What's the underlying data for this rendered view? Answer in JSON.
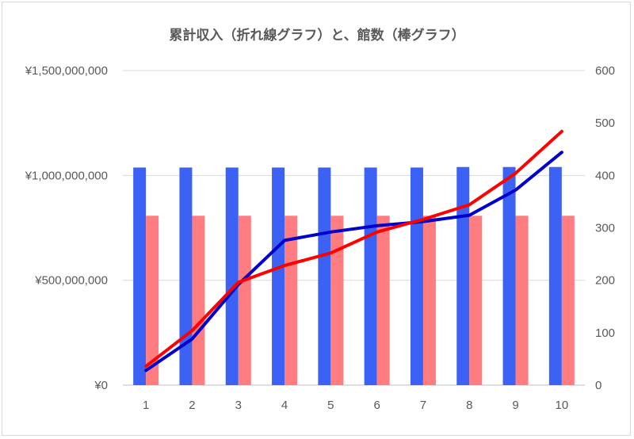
{
  "chart_data": {
    "type": "bar",
    "title": "累計収入（折れ線グラフ）と、館数（棒グラフ）",
    "categories": [
      "1",
      "2",
      "3",
      "4",
      "5",
      "6",
      "7",
      "8",
      "9",
      "10"
    ],
    "y_left": {
      "ticks": [
        "¥0",
        "¥500,000,000",
        "¥1,000,000,000",
        "¥1,500,000,000"
      ],
      "range": [
        0,
        1500000000
      ]
    },
    "y_right": {
      "ticks": [
        "0",
        "100",
        "200",
        "300",
        "400",
        "500",
        "600"
      ],
      "range": [
        0,
        600
      ]
    },
    "bar_series": [
      {
        "color": "#3c62f5",
        "axis": "right",
        "values": [
          415,
          415,
          415,
          415,
          415,
          415,
          415,
          416,
          416,
          416
        ]
      },
      {
        "color": "#ff7c80",
        "axis": "right",
        "values": [
          323,
          323,
          323,
          323,
          323,
          323,
          323,
          323,
          323,
          323
        ]
      }
    ],
    "line_series": [
      {
        "color": "#0000cc",
        "axis": "left",
        "values": [
          70000000,
          220000000,
          480000000,
          690000000,
          730000000,
          760000000,
          780000000,
          810000000,
          930000000,
          1110000000
        ]
      },
      {
        "color": "#ff0000",
        "axis": "left",
        "values": [
          90000000,
          260000000,
          490000000,
          570000000,
          630000000,
          730000000,
          790000000,
          860000000,
          1010000000,
          1210000000
        ]
      }
    ],
    "grid": true,
    "legend": "none"
  }
}
